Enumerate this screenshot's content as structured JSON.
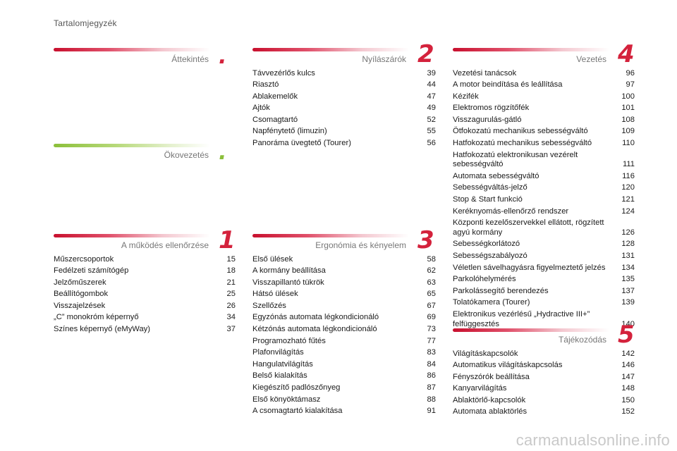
{
  "page_title": "Tartalomjegyzék",
  "sections": {
    "attekintes": {
      "title": "Áttekintés",
      "badge": "."
    },
    "okovezetes": {
      "title": "Ökovezetés",
      "badge": "."
    },
    "mukodes": {
      "title": "A működés ellenőrzése",
      "badge": "1",
      "entries": [
        {
          "t": "Műszercsoportok",
          "p": "15"
        },
        {
          "t": "Fedélzeti számítógép",
          "p": "18"
        },
        {
          "t": "Jelzőműszerek",
          "p": "21"
        },
        {
          "t": "Beállítógombok",
          "p": "25"
        },
        {
          "t": "Visszajelzések",
          "p": "26"
        },
        {
          "t": "„C” monokróm képernyő",
          "p": "34"
        },
        {
          "t": "Színes képernyő (eMyWay)",
          "p": "37"
        }
      ]
    },
    "nyilaszarok": {
      "title": "Nyílászárók",
      "badge": "2",
      "entries": [
        {
          "t": "Távvezérlős kulcs",
          "p": "39"
        },
        {
          "t": "Riasztó",
          "p": "44"
        },
        {
          "t": "Ablakemelők",
          "p": "47"
        },
        {
          "t": "Ajtók",
          "p": "49"
        },
        {
          "t": "Csomagtartó",
          "p": "52"
        },
        {
          "t": "Napfénytető (limuzin)",
          "p": "55"
        },
        {
          "t": "Panoráma üvegtető (Tourer)",
          "p": "56"
        }
      ]
    },
    "ergonomia": {
      "title": "Ergonómia és kényelem",
      "badge": "3",
      "entries": [
        {
          "t": "Első ülések",
          "p": "58"
        },
        {
          "t": "A kormány beállítása",
          "p": "62"
        },
        {
          "t": "Visszapillantó tükrök",
          "p": "63"
        },
        {
          "t": "Hátsó ülések",
          "p": "65"
        },
        {
          "t": "Szellőzés",
          "p": "67"
        },
        {
          "t": "Egyzónás automata légkondicionáló",
          "p": "69"
        },
        {
          "t": "Kétzónás automata légkondicionáló",
          "p": "73"
        },
        {
          "t": "Programozható fűtés",
          "p": "77"
        },
        {
          "t": "Plafonvilágítás",
          "p": "83"
        },
        {
          "t": "Hangulatvilágítás",
          "p": "84"
        },
        {
          "t": "Belső kialakítás",
          "p": "86"
        },
        {
          "t": "Kiegészítő padlószőnyeg",
          "p": "87"
        },
        {
          "t": "Első könyöktámasz",
          "p": "88"
        },
        {
          "t": "A csomagtartó kialakítása",
          "p": "91"
        }
      ]
    },
    "vezetes": {
      "title": "Vezetés",
      "badge": "4",
      "entries": [
        {
          "t": "Vezetési tanácsok",
          "p": "96"
        },
        {
          "t": "A motor beindítása és leállítása",
          "p": "97"
        },
        {
          "t": "Kézifék",
          "p": "100"
        },
        {
          "t": "Elektromos rögzítőfék",
          "p": "101"
        },
        {
          "t": "Visszagurulás-gátló",
          "p": "108"
        },
        {
          "t": "Ötfokozatú mechanikus sebességváltó",
          "p": "109"
        },
        {
          "t": "Hatfokozatú mechanikus sebességváltó",
          "p": "110"
        },
        {
          "t": "Hatfokozatú elektronikusan vezérelt sebességváltó",
          "p": "111"
        },
        {
          "t": "Automata sebességváltó",
          "p": "116"
        },
        {
          "t": "Sebességváltás-jelző",
          "p": "120"
        },
        {
          "t": "Stop & Start funkció",
          "p": "121"
        },
        {
          "t": "Keréknyomás-ellenőrző rendszer",
          "p": "124"
        },
        {
          "t": "Központi kezelőszervekkel ellátott, rögzített agyú kormány",
          "p": "126"
        },
        {
          "t": "Sebességkorlátozó",
          "p": "128"
        },
        {
          "t": "Sebességszabályozó",
          "p": "131"
        },
        {
          "t": "Véletlen sávelhagyásra figyelmeztető jelzés",
          "p": "134"
        },
        {
          "t": "Parkolóhelymérés",
          "p": "135"
        },
        {
          "t": "Parkolássegítő berendezés",
          "p": "137"
        },
        {
          "t": "Tolatókamera (Tourer)",
          "p": "139"
        },
        {
          "t": "Elektronikus vezérlésű „Hydractive III+” felfüggesztés",
          "p": "140"
        }
      ]
    },
    "tajekozodas": {
      "title": "Tájékozódás",
      "badge": "5",
      "entries": [
        {
          "t": "Világításkapcsolók",
          "p": "142"
        },
        {
          "t": "Automatikus világításkapcsolás",
          "p": "146"
        },
        {
          "t": "Fényszórók beállítása",
          "p": "147"
        },
        {
          "t": "Kanyarvilágítás",
          "p": "148"
        },
        {
          "t": "Ablaktörlő-kapcsolók",
          "p": "150"
        },
        {
          "t": "Automata ablaktörlés",
          "p": "152"
        }
      ]
    }
  },
  "watermark": "carmanualsonline.info"
}
